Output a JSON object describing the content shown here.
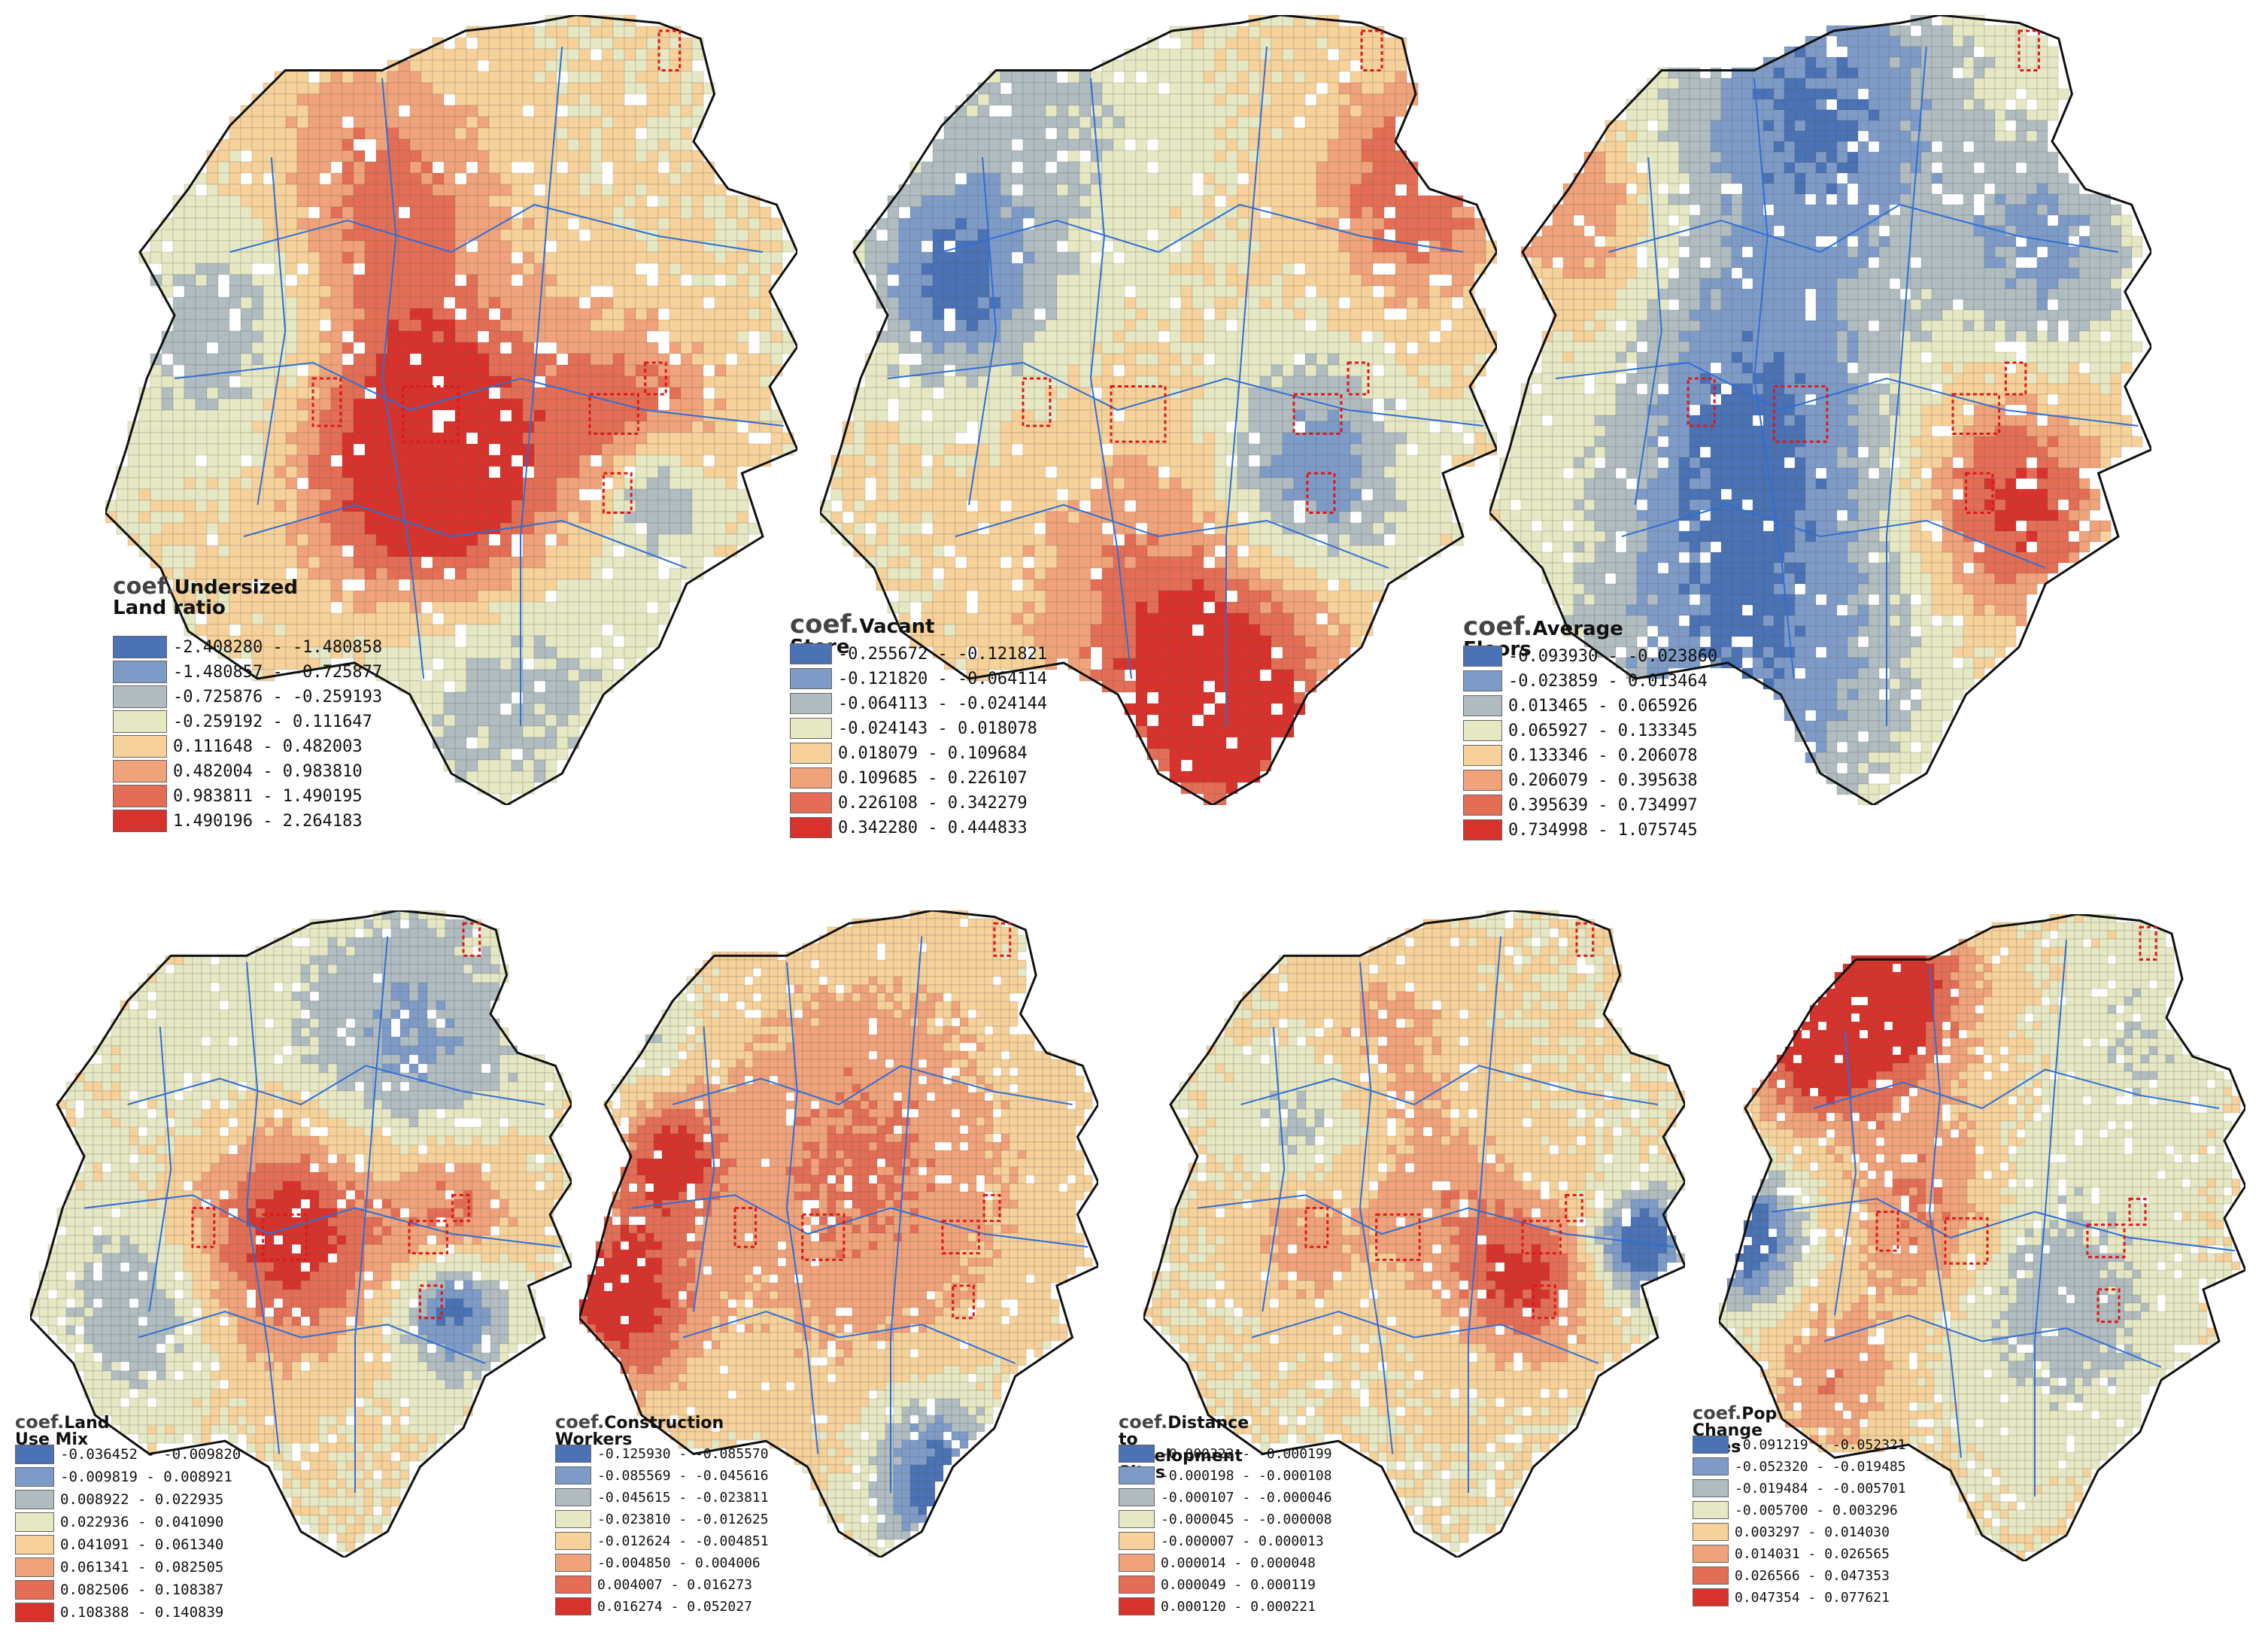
{
  "palette": [
    "#4a72b4",
    "#7e9bc7",
    "#b0bcc0",
    "#e6e8c4",
    "#f6d29a",
    "#f0a37a",
    "#e36e55",
    "#d7332c"
  ],
  "panels": [
    {
      "id": "undersized-land-ratio",
      "coef": "coef.",
      "variable": "Undersized\nLand ratio",
      "classes": [
        "-2.408280 - -1.480858",
        "-1.480857 - -0.725877",
        "-0.725876 - -0.259193",
        "-0.259192 - 0.111647",
        "0.111648 - 0.482003",
        "0.482004 - 0.983810",
        "0.983811 - 1.490195",
        "1.490196 - 2.264183"
      ]
    },
    {
      "id": "vacant-store",
      "coef": "coef.",
      "variable": "Vacant Store",
      "classes": [
        "-0.255672 - -0.121821",
        "-0.121820 - -0.064114",
        "-0.064113 - -0.024144",
        "-0.024143 - 0.018078",
        "0.018079 - 0.109684",
        "0.109685 - 0.226107",
        "0.226108 - 0.342279",
        "0.342280 - 0.444833"
      ]
    },
    {
      "id": "average-floors",
      "coef": "coef.",
      "variable": "Average Floors",
      "classes": [
        "-0.093930 - -0.023860",
        "-0.023859 - 0.013464",
        "0.013465 - 0.065926",
        "0.065927 - 0.133345",
        "0.133346 - 0.206078",
        "0.206079 - 0.395638",
        "0.395639 - 0.734997",
        "0.734998 - 1.075745"
      ]
    },
    {
      "id": "land-use-mix",
      "coef": "coef.",
      "variable": "Land Use Mix",
      "classes": [
        "-0.036452 - -0.009820",
        "-0.009819 - 0.008921",
        "0.008922 - 0.022935",
        "0.022936 - 0.041090",
        "0.041091 - 0.061340",
        "0.061341 - 0.082505",
        "0.082506 - 0.108387",
        "0.108388 - 0.140839"
      ]
    },
    {
      "id": "construction-workers",
      "coef": "coef.",
      "variable": "Construction Workers",
      "classes": [
        "-0.125930 - -0.085570",
        "-0.085569 - -0.045616",
        "-0.045615 - -0.023811",
        "-0.023810 - -0.012625",
        "-0.012624 - -0.004851",
        "-0.004850 - 0.004006",
        "0.004007 - 0.016273",
        "0.016274 - 0.052027"
      ]
    },
    {
      "id": "distance-to-development-sites",
      "coef": "coef.",
      "variable": "Distance to Development Sites",
      "classes": [
        "-0.000322 - -0.000199",
        "-0.000198 - -0.000108",
        "-0.000107 - -0.000046",
        "-0.000045 - -0.000008",
        "-0.000007 - 0.000013",
        "0.000014 - 0.000048",
        "0.000049 - 0.000119",
        "0.000120 - 0.000221"
      ]
    },
    {
      "id": "pop-change-rates",
      "coef": "coef.",
      "variable": "Pop Change rates",
      "classes": [
        "-0.091219 - -0.052321",
        "-0.052320 - -0.019485",
        "-0.019484 - -0.005701",
        "-0.005700 - 0.003296",
        "0.003297 - 0.014030",
        "0.014031 - 0.026565",
        "0.026566 - 0.047353",
        "0.047354 - 0.077621"
      ]
    }
  ]
}
